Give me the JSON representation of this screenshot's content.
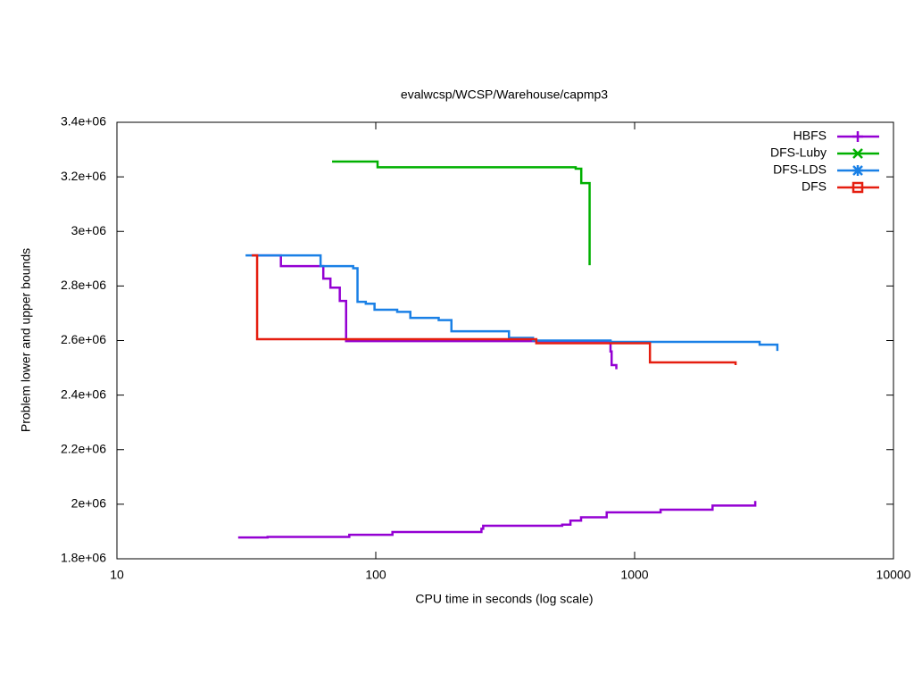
{
  "chart_data": {
    "type": "line",
    "step": true,
    "title": "evalwcsp/WCSP/Warehouse/capmp3",
    "x_label": "CPU time in seconds (log scale)",
    "y_label": "Problem lower and upper bounds",
    "x_scale": "log",
    "xlim": [
      10,
      10000
    ],
    "xticks": [
      10,
      100,
      1000,
      10000
    ],
    "ylim": [
      1800000,
      3400000
    ],
    "yticks": [
      {
        "value": 1800000,
        "label": "1.8e+06"
      },
      {
        "value": 2000000,
        "label": "2e+06"
      },
      {
        "value": 2200000,
        "label": "2.2e+06"
      },
      {
        "value": 2400000,
        "label": "2.4e+06"
      },
      {
        "value": 2600000,
        "label": "2.6e+06"
      },
      {
        "value": 2800000,
        "label": "2.8e+06"
      },
      {
        "value": 3000000,
        "label": "3e+06"
      },
      {
        "value": 3200000,
        "label": "3.2e+06"
      },
      {
        "value": 3400000,
        "label": "3.4e+06"
      }
    ],
    "legend": "top-right",
    "series": [
      {
        "name": "HBFS",
        "color": "#9400d3",
        "marker": "plus",
        "x": [
          33.2,
          43,
          62.7,
          66.8,
          72.6,
          76.8,
          807,
          815,
          850,
          null,
          29.4,
          38.2,
          79,
          116,
          256,
          260,
          525,
          565,
          621,
          780,
          1260,
          2000,
          2924
        ],
        "values": [
          2912000,
          2873000,
          2827000,
          2794000,
          2745000,
          2598000,
          2560000,
          2510000,
          2495000,
          null,
          1878000,
          1880000,
          1888000,
          1898000,
          1910000,
          1921000,
          1925000,
          1940000,
          1952000,
          1970000,
          1980000,
          1995000,
          2012000
        ]
      },
      {
        "name": "DFS-Luby",
        "color": "#00b000",
        "marker": "cross",
        "x": [
          67.8,
          101.6,
          592,
          622,
          670
        ],
        "values": [
          3256000,
          3235000,
          3230000,
          3177000,
          2876000
        ]
      },
      {
        "name": "DFS-LDS",
        "color": "#1a80e6",
        "marker": "star",
        "x": [
          31.4,
          61.2,
          81.8,
          85,
          91.5,
          98.9,
          121,
          136,
          175,
          196,
          327,
          405,
          807,
          3040,
          3560
        ],
        "values": [
          2912000,
          2873000,
          2865000,
          2742000,
          2735000,
          2713000,
          2705000,
          2683000,
          2675000,
          2634000,
          2610000,
          2600000,
          2595000,
          2585000,
          2562000
        ]
      },
      {
        "name": "DFS",
        "color": "#e51e10",
        "marker": "square",
        "x": [
          33.2,
          34.8,
          417,
          1146,
          2455
        ],
        "values": [
          2912000,
          2605000,
          2590000,
          2520000,
          2510000
        ]
      }
    ]
  }
}
